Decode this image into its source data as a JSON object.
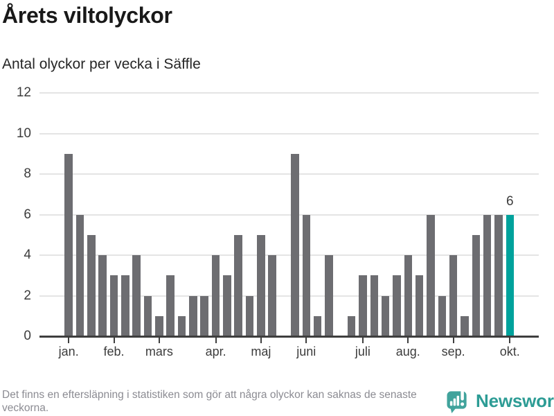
{
  "header": {
    "title": "Årets viltolyckor",
    "subtitle": "Antal olyckor per vecka i Säffle"
  },
  "chart_data": {
    "type": "bar",
    "title": "Årets viltolyckor",
    "subtitle": "Antal olyckor per vecka i Säffle",
    "ylabel": "Antal olyckor per vecka",
    "xlabel": "",
    "values": [
      9,
      6,
      5,
      4,
      3,
      3,
      4,
      2,
      1,
      3,
      1,
      2,
      2,
      4,
      3,
      5,
      2,
      5,
      4,
      0,
      9,
      6,
      1,
      4,
      0,
      1,
      3,
      3,
      2,
      3,
      4,
      3,
      6,
      2,
      4,
      1,
      5,
      6,
      6,
      6
    ],
    "highlight_index": 39,
    "highlight_value_label": "6",
    "month_ticks": [
      {
        "label": "jan.",
        "slot": 0
      },
      {
        "label": "feb.",
        "slot": 4
      },
      {
        "label": "mars",
        "slot": 8
      },
      {
        "label": "apr.",
        "slot": 13
      },
      {
        "label": "maj",
        "slot": 17
      },
      {
        "label": "juni",
        "slot": 21
      },
      {
        "label": "juli",
        "slot": 26
      },
      {
        "label": "aug.",
        "slot": 30
      },
      {
        "label": "sep.",
        "slot": 34
      },
      {
        "label": "okt.",
        "slot": 39
      }
    ],
    "yticks": [
      0,
      2,
      4,
      6,
      8,
      10,
      12
    ],
    "ylim": [
      0,
      12
    ],
    "grid": true,
    "legend": false,
    "colors": {
      "bar": "#6d6d71",
      "highlight": "#00a29c",
      "grid": "#e4e4e4",
      "axis": "#3e3e3e",
      "tick_label": "#3c3c3c"
    }
  },
  "footer": {
    "note": "Det finns en eftersläpning i statistiken som gör att några olyckor kan saknas de senaste veckorna.",
    "brand": "Newsworthy",
    "brand_color": "#2d9c95",
    "logo_color": "#41a39c"
  }
}
